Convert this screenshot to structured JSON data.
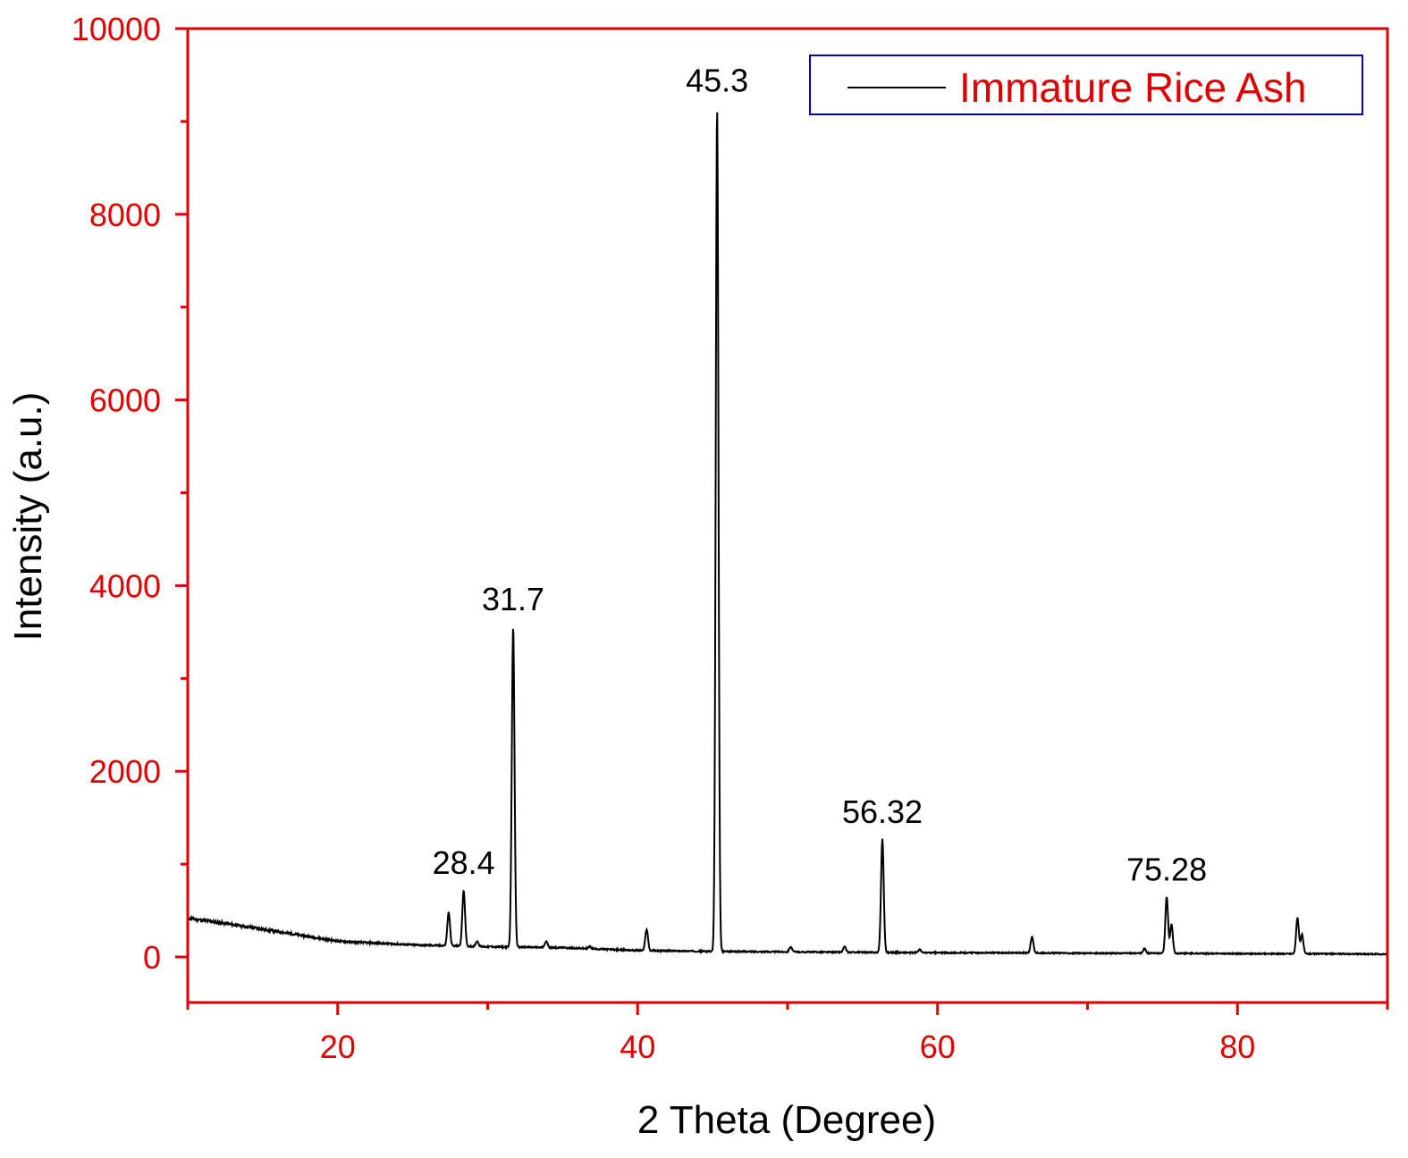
{
  "chart_data": {
    "type": "line",
    "xlabel": "2 Theta (Degree)",
    "ylabel": "Intensity (a.u.)",
    "xlim": [
      10,
      90
    ],
    "ylim": [
      -500,
      10000
    ],
    "xticks": [
      20,
      40,
      60,
      80
    ],
    "xtick_labels": [
      "20",
      "40",
      "60",
      "80"
    ],
    "yticks": [
      0,
      2000,
      4000,
      6000,
      8000,
      10000
    ],
    "ytick_labels": [
      "0",
      "2000",
      "4000",
      "6000",
      "8000",
      "10000"
    ],
    "grid": false,
    "legend_position": "top-right",
    "axis_color": "#e00000",
    "line_color": "#000000",
    "legend_border_color": "#0000cc",
    "series": [
      {
        "name": "Immature Rice Ash",
        "background": [
          [
            10,
            420
          ],
          [
            15,
            300
          ],
          [
            20,
            170
          ],
          [
            25,
            130
          ],
          [
            30,
            110
          ],
          [
            35,
            100
          ],
          [
            40,
            70
          ],
          [
            45,
            60
          ],
          [
            50,
            55
          ],
          [
            55,
            50
          ],
          [
            60,
            45
          ],
          [
            65,
            45
          ],
          [
            70,
            40
          ],
          [
            75,
            40
          ],
          [
            80,
            35
          ],
          [
            85,
            35
          ],
          [
            90,
            30
          ]
        ],
        "peaks": [
          {
            "x": 27.4,
            "y": 480
          },
          {
            "x": 28.4,
            "y": 720
          },
          {
            "x": 29.3,
            "y": 170
          },
          {
            "x": 31.7,
            "y": 3560
          },
          {
            "x": 33.9,
            "y": 170
          },
          {
            "x": 36.8,
            "y": 110
          },
          {
            "x": 40.6,
            "y": 300
          },
          {
            "x": 45.3,
            "y": 9150
          },
          {
            "x": 50.2,
            "y": 110
          },
          {
            "x": 53.8,
            "y": 110
          },
          {
            "x": 56.32,
            "y": 1270
          },
          {
            "x": 58.8,
            "y": 80
          },
          {
            "x": 66.3,
            "y": 220
          },
          {
            "x": 73.8,
            "y": 90
          },
          {
            "x": 75.28,
            "y": 650
          },
          {
            "x": 75.6,
            "y": 350
          },
          {
            "x": 84.0,
            "y": 420
          },
          {
            "x": 84.3,
            "y": 240
          }
        ]
      }
    ],
    "annotations": [
      {
        "text": "28.4",
        "x": 28.4,
        "y": 720
      },
      {
        "text": "31.7",
        "x": 31.7,
        "y": 3560
      },
      {
        "text": "45.3",
        "x": 45.3,
        "y": 9150
      },
      {
        "text": "56.32",
        "x": 56.32,
        "y": 1270
      },
      {
        "text": "75.28",
        "x": 75.28,
        "y": 650
      }
    ]
  }
}
